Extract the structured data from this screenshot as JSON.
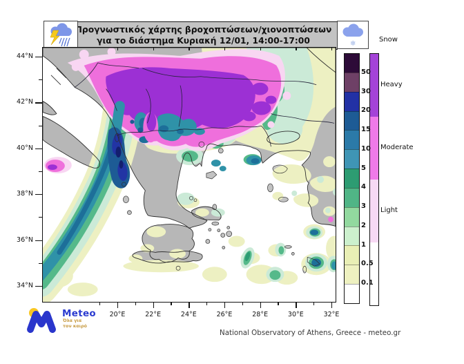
{
  "title": {
    "line1": "Προγνωστικός χάρτης βροχοπτώσεων/χιονοπτώσεων",
    "line2": "για το διάστημα  Κυριακή 12/01, 14:00-17:00"
  },
  "header_icons": {
    "left": "storm-rain-cloud-icon",
    "right": "snow-cloud-icon"
  },
  "axes": {
    "lat": [
      "44°N",
      "42°N",
      "40°N",
      "38°N",
      "36°N",
      "34°N"
    ],
    "lon": [
      "20°E",
      "22°E",
      "24°E",
      "26°E",
      "28°E",
      "30°E",
      "32°E"
    ]
  },
  "legend_precip": {
    "tick_labels_top_to_bottom": [
      "50",
      "30",
      "20",
      "15",
      "10",
      "5",
      "4",
      "3",
      "2",
      "1",
      "0.5",
      "0.1"
    ],
    "colors_top_to_bottom": [
      "#2d0b38",
      "#6e4066",
      "#2231a5",
      "#1d5b95",
      "#2b7aa8",
      "#3f95b5",
      "#2d9c72",
      "#50b586",
      "#92d99f",
      "#ccf0cd",
      "#e9efb5",
      "#eef1c0",
      "#ffffff"
    ]
  },
  "legend_snow": {
    "title": "Snow",
    "categories": [
      {
        "label": "Heavy",
        "color": "#a443d8"
      },
      {
        "label": "Moderate",
        "color": "#ef7ae8"
      },
      {
        "label": "Light",
        "color": "#f7d9f4"
      },
      {
        "label": "",
        "color": "#ffffff"
      }
    ]
  },
  "map_palette": {
    "sea": "#ffffff",
    "land_no_precip": "#b7b7b7",
    "rain_light_yellow": "#edf0c2",
    "rain_mint": "#cbead7",
    "rain_green": "#55b98a",
    "rain_teal": "#2f92a8",
    "rain_dark_teal": "#1d6f99",
    "rain_blue": "#1d5b95",
    "rain_navy": "#2234a4",
    "rain_darkest": "#131f6e",
    "snow_heavy_purple": "#9c30d4",
    "snow_moderate_magenta": "#ef6fdc",
    "snow_light_pink": "#f8d6f2"
  },
  "logo": {
    "name": "Meteo",
    "tagline_line1": "Όλα για",
    "tagline_line2": "τον καιρό"
  },
  "attribution": "National Observatory of Athens, Greece - meteo.gr"
}
